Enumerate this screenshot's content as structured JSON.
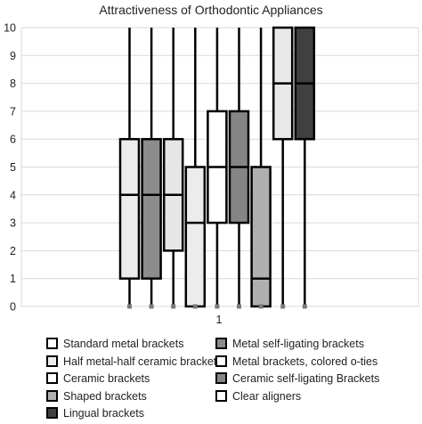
{
  "chart_data": {
    "type": "box",
    "title": "Attractiveness of Orthodontic Appliances",
    "xlabel": "",
    "ylabel": "",
    "categories": [
      "1"
    ],
    "ylim": [
      0,
      10
    ],
    "yticks": [
      "0",
      "1",
      "2",
      "3",
      "4",
      "5",
      "6",
      "7",
      "8",
      "9",
      "10"
    ],
    "grid": true,
    "legend_position": "bottom",
    "series": [
      {
        "name": "Standard metal brackets",
        "color": "#ececec",
        "min": 0,
        "q1": 1,
        "median": 4,
        "q3": 6,
        "max": 10
      },
      {
        "name": "Metal self-ligating brackets",
        "color": "#8c8c8c",
        "min": 0,
        "q1": 1,
        "median": 4,
        "q3": 6,
        "max": 10
      },
      {
        "name": "Half metal-half ceramic brackets",
        "color": "#e6e6e6",
        "min": 0,
        "q1": 2,
        "median": 4,
        "q3": 6,
        "max": 10
      },
      {
        "name": "Metal brackets, colored o-ties",
        "color": "#ececec",
        "min": 0,
        "q1": 0,
        "median": 3,
        "q3": 5,
        "max": 10
      },
      {
        "name": "Ceramic brackets",
        "color": "#ffffff",
        "min": 0,
        "q1": 3,
        "median": 5,
        "q3": 7,
        "max": 10
      },
      {
        "name": "Ceramic self-ligating Brackets",
        "color": "#858585",
        "min": 0,
        "q1": 3,
        "median": 5,
        "q3": 7,
        "max": 10
      },
      {
        "name": "Shaped brackets",
        "color": "#b0b0b0",
        "min": 0,
        "q1": 0,
        "median": 1,
        "q3": 5,
        "max": 10
      },
      {
        "name": "Clear aligners",
        "color": "#e8e8e8",
        "min": 0,
        "q1": 6,
        "median": 8,
        "q3": 10,
        "max": 10
      },
      {
        "name": "Lingual brackets",
        "color": "#404040",
        "min": 0,
        "q1": 6,
        "median": 8,
        "q3": 10,
        "max": 10
      }
    ]
  },
  "legend": [
    {
      "label": "Standard metal brackets",
      "color": "#ffffff"
    },
    {
      "label": "Metal self-ligating brackets",
      "color": "#8c8c8c"
    },
    {
      "label": "Half metal-half ceramic brackets",
      "color": "#ececec"
    },
    {
      "label": "Metal brackets, colored o-ties",
      "color": "#ffffff"
    },
    {
      "label": "Ceramic brackets",
      "color": "#ffffff"
    },
    {
      "label": "Ceramic self-ligating Brackets",
      "color": "#858585"
    },
    {
      "label": "Shaped brackets",
      "color": "#b0b0b0"
    },
    {
      "label": "Clear aligners",
      "color": "#ffffff"
    },
    {
      "label": "Lingual brackets",
      "color": "#404040"
    }
  ]
}
